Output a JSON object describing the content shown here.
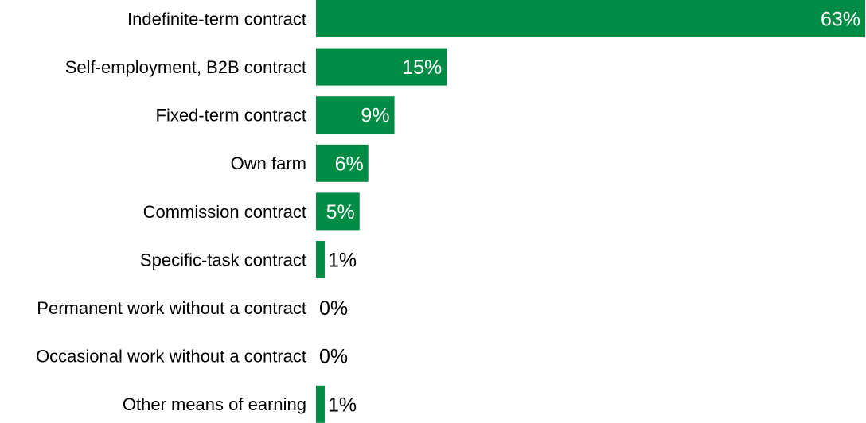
{
  "chart_data": {
    "type": "bar",
    "orientation": "horizontal",
    "categories": [
      "Indefinite-term contract",
      "Self-employment, B2B contract",
      "Fixed-term contract",
      "Own farm",
      "Commission contract",
      "Specific-task contract",
      "Permanent work without a contract",
      "Occasional work without a contract",
      "Other means of earning"
    ],
    "values": [
      63,
      15,
      9,
      6,
      5,
      1,
      0,
      0,
      1
    ],
    "value_labels": [
      "63%",
      "15%",
      "9%",
      "6%",
      "5%",
      "1%",
      "0%",
      "0%",
      "1%"
    ],
    "unit": "%",
    "xlim": [
      0,
      63
    ],
    "bar_color": "#008c45",
    "inside_label_color": "#ffffff",
    "outside_label_color": "#000000",
    "category_label_color": "#000000",
    "grid": false,
    "legend": "none",
    "axes_visible": false
  }
}
